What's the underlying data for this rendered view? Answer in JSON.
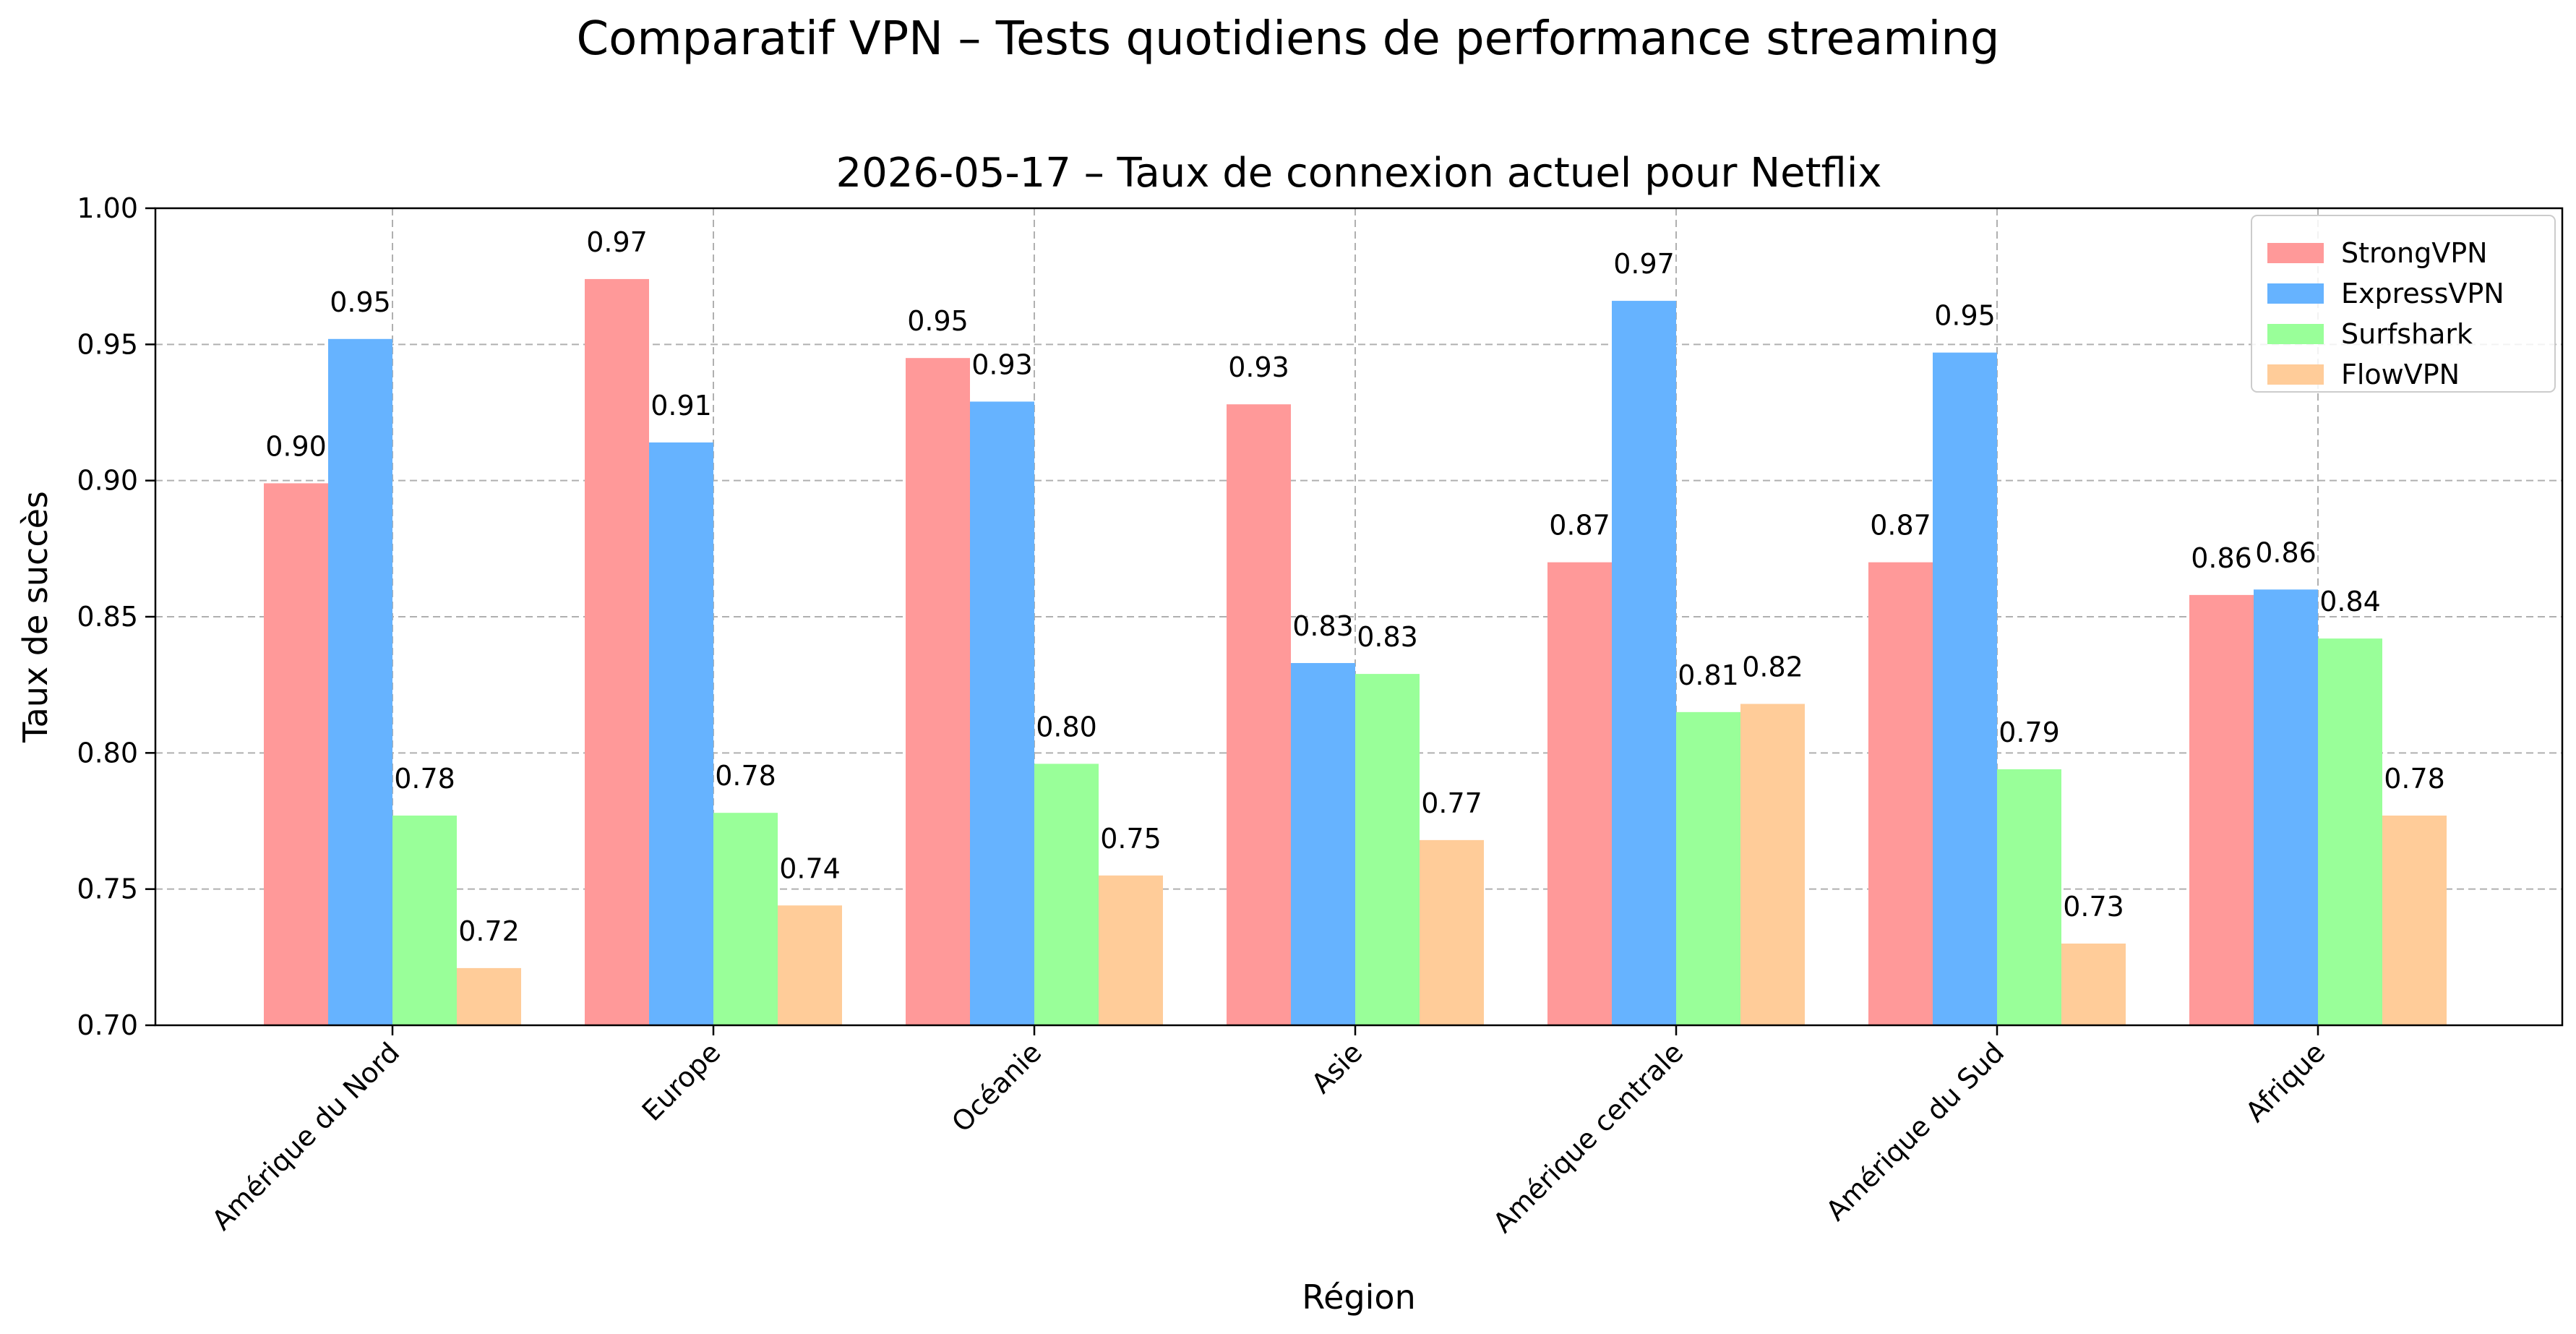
{
  "chart_data": {
    "type": "bar",
    "suptitle": "Comparatif VPN – Tests quotidiens de performance streaming",
    "title": "2026-05-17 – Taux de connexion actuel pour Netflix",
    "xlabel": "Région",
    "ylabel": "Taux de succès",
    "ylim": [
      0.7,
      1.0
    ],
    "yticks": [
      "0.70",
      "0.75",
      "0.80",
      "0.85",
      "0.90",
      "0.95",
      "1.00"
    ],
    "grid": true,
    "legend_position": "top-right",
    "categories": [
      "Amérique du Nord",
      "Europe",
      "Océanie",
      "Asie",
      "Amérique centrale",
      "Amérique du Sud",
      "Afrique"
    ],
    "series": [
      {
        "name": "StrongVPN",
        "color": "#ff9999",
        "values": [
          0.899,
          0.974,
          0.945,
          0.928,
          0.87,
          0.87,
          0.858
        ],
        "labels": [
          "0.90",
          "0.97",
          "0.95",
          "0.93",
          "0.87",
          "0.87",
          "0.86"
        ]
      },
      {
        "name": "ExpressVPN",
        "color": "#66b3ff",
        "values": [
          0.952,
          0.914,
          0.929,
          0.833,
          0.966,
          0.947,
          0.86
        ],
        "labels": [
          "0.95",
          "0.91",
          "0.93",
          "0.83",
          "0.97",
          "0.95",
          "0.86"
        ]
      },
      {
        "name": "Surfshark",
        "color": "#99ff99",
        "values": [
          0.777,
          0.778,
          0.796,
          0.829,
          0.815,
          0.794,
          0.842
        ],
        "labels": [
          "0.78",
          "0.78",
          "0.80",
          "0.83",
          "0.81",
          "0.79",
          "0.84"
        ]
      },
      {
        "name": "FlowVPN",
        "color": "#ffcc99",
        "values": [
          0.721,
          0.744,
          0.755,
          0.768,
          0.818,
          0.73,
          0.777
        ],
        "labels": [
          "0.72",
          "0.74",
          "0.75",
          "0.77",
          "0.82",
          "0.73",
          "0.78"
        ]
      }
    ]
  }
}
